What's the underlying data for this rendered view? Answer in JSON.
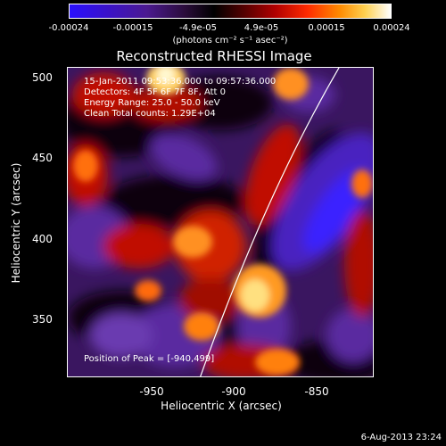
{
  "colorbar": {
    "ticks": [
      "-0.00024",
      "-0.00015",
      "-4.9e-05",
      "4.9e-05",
      "0.00015",
      "0.00024"
    ],
    "unit": "(photons cm⁻² s⁻¹ asec⁻²)"
  },
  "title": "Reconstructed RHESSI Image",
  "info": {
    "time": "15-Jan-2011 09:53:36.000 to 09:57:36.000",
    "detectors": "Detectors: 4F 5F 6F 7F 8F, Att 0",
    "energy": "Energy Range: 25.0 - 50.0 keV",
    "clean": "Clean     Total counts: 1.29E+04",
    "peak": "Position of Peak = [-940,499]"
  },
  "axes": {
    "xlabel": "Heliocentric X (arcsec)",
    "ylabel": "Heliocentric Y (arcsec)",
    "xticks": [
      "-950",
      "-900",
      "-850"
    ],
    "yticks": [
      "500",
      "450",
      "400",
      "350"
    ]
  },
  "footer": {
    "timestamp": "6-Aug-2013 23:24"
  }
}
